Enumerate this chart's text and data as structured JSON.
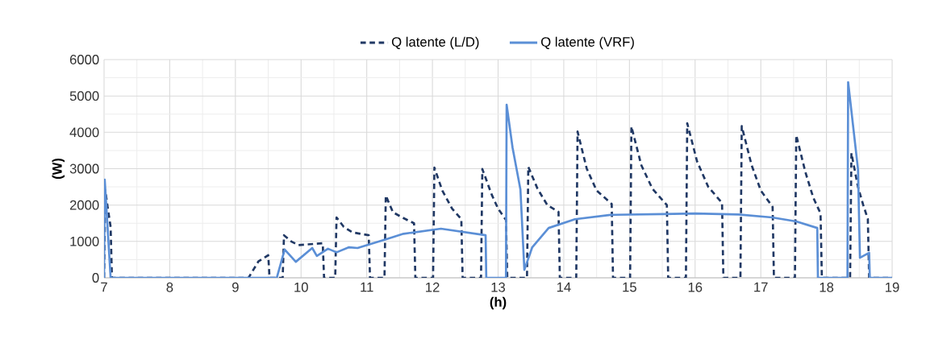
{
  "chart_data": {
    "type": "line",
    "xlabel": "(h)",
    "ylabel": "(W)",
    "xlim": [
      7,
      19
    ],
    "ylim": [
      0,
      6000
    ],
    "xticks": [
      7,
      8,
      9,
      10,
      11,
      12,
      13,
      14,
      15,
      16,
      17,
      18,
      19
    ],
    "yticks": [
      0,
      1000,
      2000,
      3000,
      4000,
      5000,
      6000
    ],
    "grid": true,
    "legend": "top",
    "marker": "none",
    "series": [
      {
        "name": "Q latente (L/D)",
        "color": "#203864",
        "line_style": "dashed",
        "x": [
          7,
          7.02,
          7.05,
          7.1,
          7.12,
          9.2,
          9.35,
          9.5,
          9.52,
          9.72,
          9.74,
          9.85,
          9.96,
          10.33,
          10.35,
          10.52,
          10.54,
          10.65,
          10.78,
          11.03,
          11.05,
          11.27,
          11.29,
          11.4,
          11.55,
          11.72,
          11.74,
          12.01,
          12.03,
          12.15,
          12.3,
          12.44,
          12.46,
          12.74,
          12.76,
          12.9,
          13.0,
          13.12,
          13.14,
          13.44,
          13.46,
          13.6,
          13.75,
          13.92,
          13.94,
          14.19,
          14.21,
          14.35,
          14.5,
          14.73,
          14.75,
          15.01,
          15.03,
          15.18,
          15.35,
          15.57,
          15.59,
          15.86,
          15.88,
          16.03,
          16.2,
          16.41,
          16.43,
          16.69,
          16.71,
          16.86,
          17.0,
          17.18,
          17.2,
          17.52,
          17.54,
          17.68,
          17.8,
          17.91,
          17.93,
          18.36,
          18.38,
          18.48,
          18.56,
          18.63,
          18.65,
          19
        ],
        "values": [
          0,
          2400,
          2000,
          1400,
          0,
          0,
          450,
          620,
          0,
          0,
          1170,
          1000,
          900,
          950,
          0,
          0,
          1660,
          1400,
          1250,
          1170,
          0,
          0,
          2260,
          1800,
          1650,
          1500,
          0,
          0,
          3030,
          2400,
          1900,
          1610,
          0,
          0,
          2990,
          2300,
          1900,
          1590,
          0,
          0,
          3050,
          2450,
          2000,
          1810,
          0,
          0,
          4020,
          3000,
          2400,
          2030,
          0,
          0,
          4160,
          3100,
          2450,
          2000,
          0,
          0,
          4250,
          3200,
          2500,
          2060,
          0,
          0,
          4170,
          3100,
          2400,
          1950,
          0,
          0,
          3920,
          2900,
          2200,
          1770,
          0,
          0,
          3430,
          2500,
          2000,
          1620,
          0,
          0
        ]
      },
      {
        "name": "Q latente (VRF)",
        "color": "#5b8fd6",
        "line_style": "solid",
        "x": [
          7,
          7.01,
          7.1,
          9.63,
          9.75,
          9.92,
          10.17,
          10.24,
          10.41,
          10.54,
          10.73,
          10.86,
          11.31,
          11.56,
          12.13,
          12.81,
          12.82,
          13.12,
          13.13,
          13.22,
          13.34,
          13.4,
          13.52,
          13.77,
          14.17,
          14.71,
          15.5,
          16.0,
          16.66,
          17.17,
          17.54,
          17.86,
          17.87,
          18.32,
          18.33,
          18.48,
          18.51,
          18.65,
          18.66,
          19
        ],
        "values": [
          0,
          2700,
          0,
          0,
          780,
          440,
          820,
          600,
          800,
          700,
          840,
          820,
          1070,
          1210,
          1350,
          1170,
          0,
          0,
          4760,
          3580,
          2430,
          220,
          840,
          1370,
          1610,
          1730,
          1750,
          1770,
          1740,
          1660,
          1550,
          1370,
          0,
          0,
          5380,
          2990,
          550,
          690,
          0,
          0
        ]
      }
    ]
  }
}
